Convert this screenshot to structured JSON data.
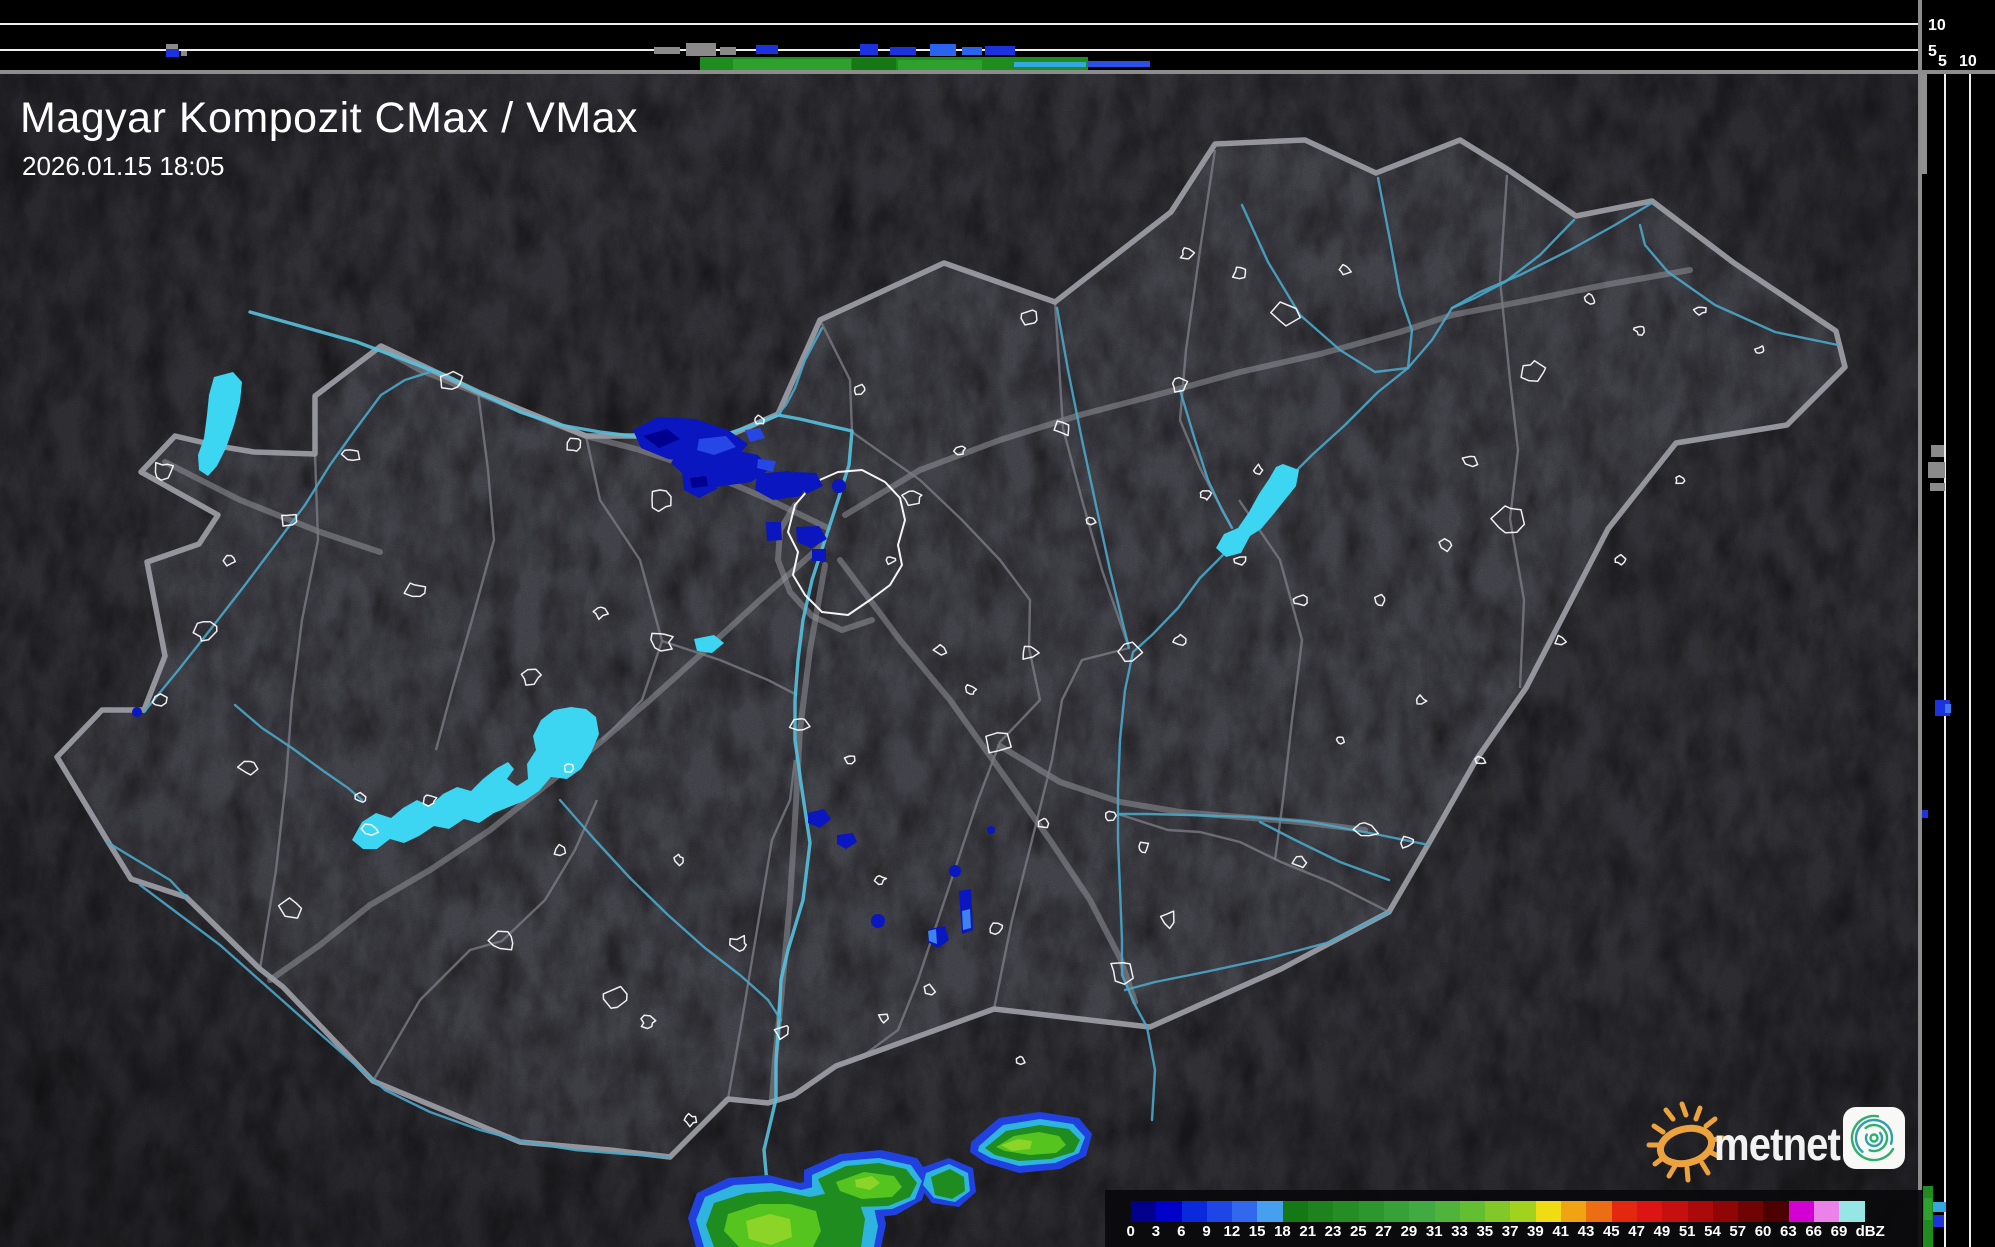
{
  "header": {
    "title": "Magyar Kompozit CMax / VMax",
    "timestamp": "2026.01.15 18:05"
  },
  "branding": {
    "wordmark": "metnet"
  },
  "panels": {
    "top_axis_labels": [
      "10",
      "5"
    ],
    "right_axis_labels": [
      "5",
      "10"
    ]
  },
  "colorbar": {
    "unit": "dBZ",
    "ticks": [
      "0",
      "3",
      "6",
      "9",
      "12",
      "15",
      "18",
      "21",
      "23",
      "25",
      "27",
      "29",
      "31",
      "33",
      "35",
      "37",
      "39",
      "41",
      "43",
      "45",
      "47",
      "49",
      "51",
      "54",
      "57",
      "60",
      "63",
      "66",
      "69"
    ],
    "colors": [
      "#00008c",
      "#0000c8",
      "#0a28dc",
      "#1e46e6",
      "#3268ee",
      "#46a0f0",
      "#147814",
      "#1e821e",
      "#268c26",
      "#2e962e",
      "#38a038",
      "#42aa42",
      "#50b43c",
      "#64be32",
      "#82c828",
      "#a0d21e",
      "#f0dc14",
      "#f0a414",
      "#ec6e12",
      "#e42810",
      "#dc1414",
      "#c61010",
      "#ac0a0a",
      "#900606",
      "#700404",
      "#4c0000",
      "#d200d2",
      "#ea82ea",
      "#96e6e6"
    ]
  },
  "map_colors": {
    "lake": "#3cd6f2",
    "river": "#4aa6c8",
    "country_border": "#9a9aa2",
    "city_outline": "#ffffff",
    "echo_blue": "#0a16c0",
    "echo_green": "#1e8c1e"
  }
}
